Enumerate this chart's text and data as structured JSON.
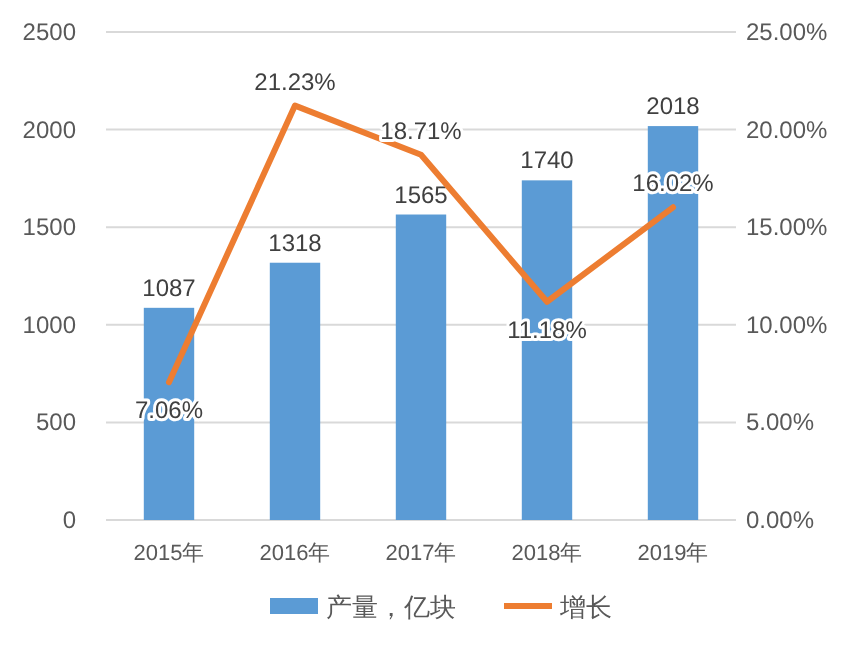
{
  "chart_data": {
    "type": "bar",
    "categories": [
      "2015年",
      "2016年",
      "2017年",
      "2018年",
      "2019年"
    ],
    "series": [
      {
        "name": "产量，亿块",
        "color": "#5b9bd5",
        "values": [
          1087,
          1318,
          1565,
          1740,
          2018
        ]
      },
      {
        "name": "增长",
        "type": "line",
        "axis": "y2",
        "color": "#ed7d31",
        "values": [
          7.06,
          21.23,
          18.71,
          11.18,
          16.02
        ],
        "value_labels": [
          "7.06%",
          "21.23%",
          "18.71%",
          "11.18%",
          "16.02%"
        ]
      }
    ],
    "ylim": [
      0,
      2500
    ],
    "yticks": [
      0,
      500,
      1000,
      1500,
      2000,
      2500
    ],
    "y2lim": [
      0,
      25
    ],
    "y2ticks": [
      {
        "value": 0,
        "label": "0.00%"
      },
      {
        "value": 5,
        "label": "5.00%"
      },
      {
        "value": 10,
        "label": "10.00%"
      },
      {
        "value": 15,
        "label": "15.00%"
      },
      {
        "value": 20,
        "label": "20.00%"
      },
      {
        "value": 25,
        "label": "25.00%"
      }
    ],
    "data_labels": true,
    "grid": "y",
    "legend": "bottom"
  }
}
